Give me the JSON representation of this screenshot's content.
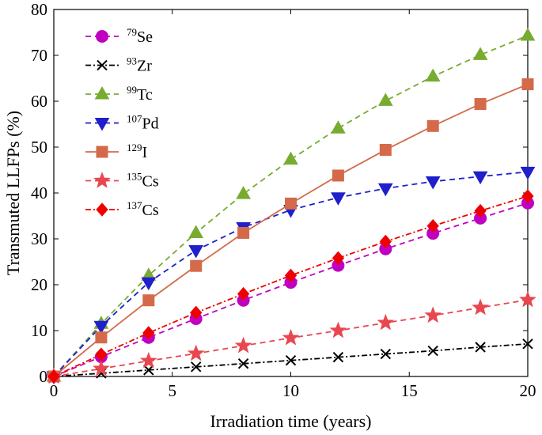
{
  "chart_data": {
    "type": "line",
    "xlabel": "Irradiation time (years)",
    "ylabel": "Transmuted LLFPs (%)",
    "xlim": [
      0,
      20
    ],
    "ylim": [
      0,
      80
    ],
    "xticks": [
      0,
      5,
      10,
      15,
      20
    ],
    "yticks": [
      0,
      10,
      20,
      30,
      40,
      50,
      60,
      70,
      80
    ],
    "grid": false,
    "legend_position": "top-left",
    "x": [
      0,
      2,
      4,
      6,
      8,
      10,
      12,
      14,
      16,
      18,
      20
    ],
    "series": [
      {
        "name": "79Se",
        "mass": "79",
        "element": "Se",
        "color": "#c000c0",
        "dash": "dashed",
        "marker": "circle",
        "values": [
          0,
          4.3,
          8.5,
          12.6,
          16.6,
          20.5,
          24.2,
          27.8,
          31.2,
          34.5,
          37.8
        ]
      },
      {
        "name": "93Zr",
        "mass": "93",
        "element": "Zr",
        "color": "#000000",
        "dash": "dashdot",
        "marker": "x",
        "values": [
          0,
          0.7,
          1.4,
          2.1,
          2.8,
          3.5,
          4.2,
          4.9,
          5.6,
          6.4,
          7.1
        ]
      },
      {
        "name": "99Tc",
        "mass": "99",
        "element": "Tc",
        "color": "#77ac30",
        "dash": "dashed",
        "marker": "triangle-up",
        "values": [
          0,
          11.5,
          22.0,
          31.3,
          39.8,
          47.3,
          54.1,
          60.1,
          65.4,
          70.1,
          74.3
        ]
      },
      {
        "name": "107Pd",
        "mass": "107",
        "element": "Pd",
        "color": "#1f1fcc",
        "dash": "dashed",
        "marker": "triangle-down",
        "values": [
          0,
          11.0,
          20.5,
          27.5,
          32.5,
          36.3,
          39.0,
          41.0,
          42.5,
          43.6,
          44.6
        ]
      },
      {
        "name": "129I",
        "mass": "129",
        "element": "I",
        "color": "#d46a4a",
        "dash": "solid",
        "marker": "square",
        "values": [
          0,
          8.5,
          16.6,
          24.1,
          31.3,
          37.7,
          43.8,
          49.4,
          54.6,
          59.4,
          63.7
        ]
      },
      {
        "name": "135Cs",
        "mass": "135",
        "element": "Cs",
        "color": "#e8474f",
        "dash": "dashed",
        "marker": "star",
        "values": [
          0,
          1.7,
          3.4,
          5.0,
          6.7,
          8.4,
          10.0,
          11.7,
          13.3,
          15.0,
          16.7
        ]
      },
      {
        "name": "137Cs",
        "mass": "137",
        "element": "Cs",
        "color": "#ee0000",
        "dash": "dashdot",
        "marker": "diamond",
        "values": [
          0,
          4.8,
          9.5,
          13.9,
          18.0,
          22.0,
          25.8,
          29.4,
          32.8,
          36.1,
          39.3
        ]
      }
    ]
  }
}
